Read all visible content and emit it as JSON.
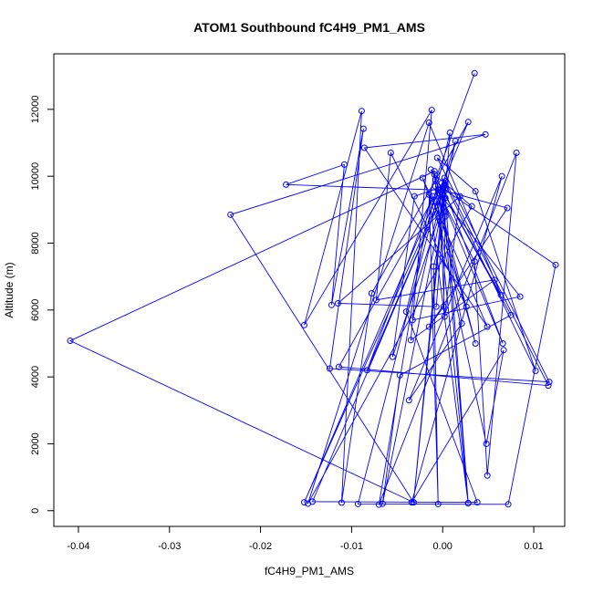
{
  "chart_data": {
    "type": "scatter",
    "title": "ATOM1 Southbound fC4H9_PM1_AMS",
    "xlabel": "fC4H9_PM1_AMS",
    "ylabel": "Altitude (m)",
    "xlim": [
      -0.0427,
      0.0134
    ],
    "ylim": [
      -470,
      13660
    ],
    "x_ticks": [
      -0.04,
      -0.03,
      -0.02,
      -0.01,
      0.0,
      0.01
    ],
    "x_tick_labels": [
      "-0.04",
      "-0.03",
      "-0.02",
      "-0.01",
      "0.00",
      "0.01"
    ],
    "y_ticks": [
      0,
      2000,
      4000,
      6000,
      8000,
      10000,
      12000
    ],
    "y_tick_labels": [
      "0",
      "2000",
      "4000",
      "6000",
      "8000",
      "10000",
      "12000"
    ],
    "grid": false,
    "connect_points": true,
    "series_color": "#0000ff",
    "series": [
      {
        "points": [
          {
            "x": 0.0035,
            "y": 13080
          },
          {
            "x": -0.0008,
            "y": 9900
          },
          {
            "x": 0.0003,
            "y": 8950
          },
          {
            "x": 0.0001,
            "y": 6100
          },
          {
            "x": -0.0015,
            "y": 5500
          },
          {
            "x": 0.0071,
            "y": 9050
          },
          {
            "x": -0.0003,
            "y": 9600
          },
          {
            "x": 0.0028,
            "y": 11620
          },
          {
            "x": -0.0078,
            "y": 6500
          },
          {
            "x": -0.0111,
            "y": 240
          },
          {
            "x": -0.0089,
            "y": 11950
          },
          {
            "x": -0.0152,
            "y": 5550
          },
          {
            "x": -0.0012,
            "y": 11980
          },
          {
            "x": -0.0035,
            "y": 5100
          },
          {
            "x": 0.0057,
            "y": 6900
          },
          {
            "x": -0.0073,
            "y": 6300
          },
          {
            "x": -0.0057,
            "y": 10700
          },
          {
            "x": 0.0026,
            "y": 6100
          },
          {
            "x": -0.0022,
            "y": 9950
          },
          {
            "x": 0.0049,
            "y": 5500
          },
          {
            "x": -0.0086,
            "y": 10850
          },
          {
            "x": 0.0047,
            "y": 11250
          },
          {
            "x": -0.0233,
            "y": 8850
          },
          {
            "x": -0.0032,
            "y": 250
          },
          {
            "x": 0.0002,
            "y": 9950
          },
          {
            "x": -0.0152,
            "y": 250
          },
          {
            "x": 0.0003,
            "y": 9750
          },
          {
            "x": 0.0102,
            "y": 4180
          },
          {
            "x": 0.0036,
            "y": 9550
          },
          {
            "x": -0.0006,
            "y": 10550
          },
          {
            "x": 0.0117,
            "y": 3850
          },
          {
            "x": -0.0124,
            "y": 4250
          },
          {
            "x": -0.0087,
            "y": 11420
          },
          {
            "x": -0.0122,
            "y": 6150
          },
          {
            "x": -0.0108,
            "y": 10350
          },
          {
            "x": -0.0172,
            "y": 9750
          },
          {
            "x": 0.0003,
            "y": 9580
          },
          {
            "x": 0.0124,
            "y": 7350
          },
          {
            "x": 0.0072,
            "y": 190
          },
          {
            "x": -0.0093,
            "y": 200
          },
          {
            "x": -0.0007,
            "y": 9250
          },
          {
            "x": 0.0036,
            "y": 5000
          },
          {
            "x": -0.0008,
            "y": 9700
          },
          {
            "x": 0.0035,
            "y": 7450
          },
          {
            "x": 0.0049,
            "y": 1050
          },
          {
            "x": 0.0081,
            "y": 10700
          },
          {
            "x": -0.007,
            "y": 180
          },
          {
            "x": -0.0009,
            "y": 10150
          },
          {
            "x": -0.0409,
            "y": 5080
          },
          {
            "x": -0.0032,
            "y": 250
          },
          {
            "x": 0.0003,
            "y": 9850
          },
          {
            "x": 0.0116,
            "y": 3740
          },
          {
            "x": -0.0114,
            "y": 4300
          },
          {
            "x": -0.0005,
            "y": 9600
          },
          {
            "x": 0.0066,
            "y": 5000
          },
          {
            "x": -0.0001,
            "y": 9800
          },
          {
            "x": 0.0028,
            "y": 230
          },
          {
            "x": -0.0009,
            "y": 10050
          },
          {
            "x": 0.0032,
            "y": 9100
          },
          {
            "x": -0.0148,
            "y": 210
          },
          {
            "x": -0.0015,
            "y": 11600
          },
          {
            "x": 0.0064,
            "y": 6450
          },
          {
            "x": -0.0013,
            "y": 10200
          },
          {
            "x": 0.0075,
            "y": 5850
          },
          {
            "x": -0.0047,
            "y": 4050
          },
          {
            "x": -0.0066,
            "y": 210
          },
          {
            "x": 0.0014,
            "y": 11050
          },
          {
            "x": -0.0003,
            "y": 9450
          },
          {
            "x": 0.0002,
            "y": 5800
          },
          {
            "x": 0.0019,
            "y": 9400
          },
          {
            "x": -0.0115,
            "y": 6200
          },
          {
            "x": -0.0007,
            "y": 6100
          },
          {
            "x": 0.0008,
            "y": 11300
          },
          {
            "x": -0.004,
            "y": 5950
          },
          {
            "x": 0.0038,
            "y": 250
          },
          {
            "x": -0.0143,
            "y": 270
          },
          {
            "x": 0.0003,
            "y": 9650
          },
          {
            "x": -0.0083,
            "y": 4200
          },
          {
            "x": -0.0011,
            "y": 9400
          },
          {
            "x": 0.0048,
            "y": 2000
          },
          {
            "x": 0.0067,
            "y": 4800
          },
          {
            "x": -0.0034,
            "y": 250
          },
          {
            "x": 0.0065,
            "y": 10000
          },
          {
            "x": -0.0037,
            "y": 3300
          },
          {
            "x": 0.0021,
            "y": 5600
          },
          {
            "x": -0.0004,
            "y": 9500
          },
          {
            "x": 0.0085,
            "y": 6400
          },
          {
            "x": -0.0033,
            "y": 5700
          },
          {
            "x": 0.0001,
            "y": 9700
          },
          {
            "x": -0.0031,
            "y": 9400
          },
          {
            "x": -0.0055,
            "y": 4600
          },
          {
            "x": 0.0003,
            "y": 9350
          },
          {
            "x": 0.0028,
            "y": 220
          },
          {
            "x": -0.0015,
            "y": 9450
          },
          {
            "x": -0.0005,
            "y": 200
          },
          {
            "x": -0.001,
            "y": 7300
          },
          {
            "x": 0.0003,
            "y": 8800
          }
        ]
      }
    ]
  }
}
